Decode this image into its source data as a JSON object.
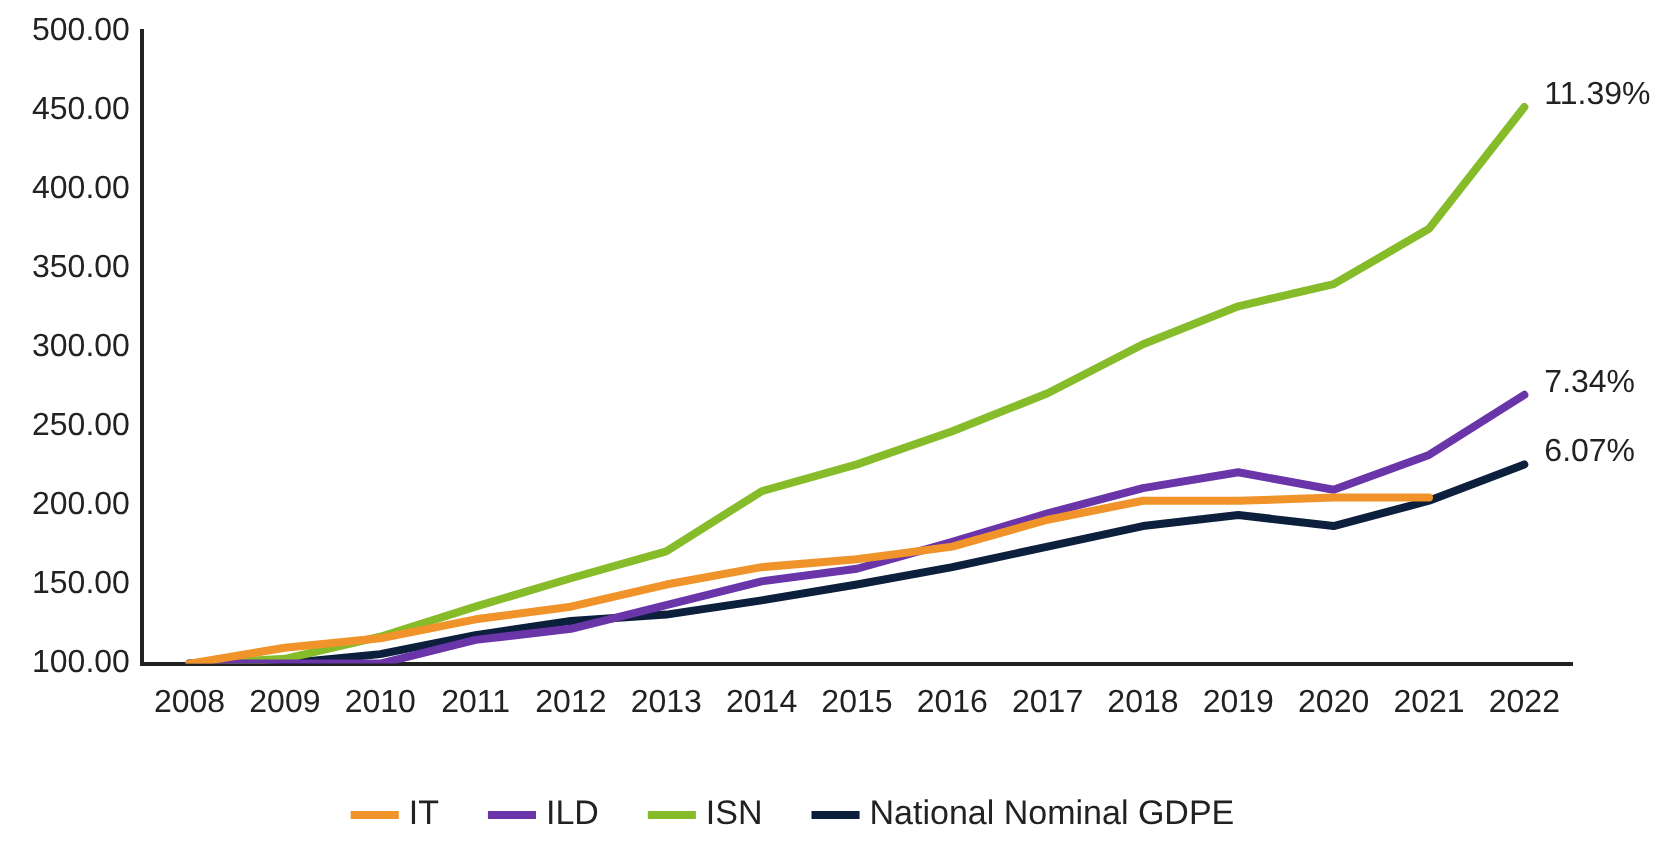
{
  "chart_data": {
    "type": "line",
    "categories": [
      "2008",
      "2009",
      "2010",
      "2011",
      "2012",
      "2013",
      "2014",
      "2015",
      "2016",
      "2017",
      "2018",
      "2019",
      "2020",
      "2021",
      "2022"
    ],
    "series": [
      {
        "name": "IT",
        "color": "#f0932b",
        "values": [
          100,
          110,
          116,
          128,
          136,
          150,
          161,
          166,
          174,
          191,
          203,
          203,
          205,
          205,
          null
        ]
      },
      {
        "name": "ILD",
        "color": "#6a35a8",
        "values": [
          100,
          100,
          100,
          115,
          122,
          137,
          152,
          160,
          177,
          195,
          211,
          221,
          210,
          232,
          270
        ]
      },
      {
        "name": "ISN",
        "color": "#86bc2a",
        "values": [
          100,
          103,
          117,
          136,
          154,
          171,
          209,
          226,
          247,
          271,
          302,
          326,
          340,
          375,
          452
        ]
      },
      {
        "name": "National Nominal GDPE",
        "color": "#0c1f3c",
        "values": [
          100,
          100,
          106,
          118,
          127,
          131,
          140,
          150,
          161,
          174,
          187,
          194,
          187,
          203,
          226
        ]
      }
    ],
    "ylim": [
      100,
      500
    ],
    "yticks": [
      {
        "value": 100,
        "label": "100.00"
      },
      {
        "value": 150,
        "label": "150.00"
      },
      {
        "value": 200,
        "label": "200.00"
      },
      {
        "value": 250,
        "label": "250.00"
      },
      {
        "value": 300,
        "label": "300.00"
      },
      {
        "value": 350,
        "label": "350.00"
      },
      {
        "value": 400,
        "label": "400.00"
      },
      {
        "value": 450,
        "label": "450.00"
      },
      {
        "value": 500,
        "label": "500.00"
      }
    ],
    "annotations": [
      {
        "text": "11.39%",
        "x": "2022",
        "y": 452
      },
      {
        "text": "7.34%",
        "x": "2022",
        "y": 270
      },
      {
        "text": "6.07%",
        "x": "2022",
        "y": 226
      }
    ],
    "grid": false,
    "legend": "bottom",
    "marker": "none",
    "line_style": "solid"
  }
}
